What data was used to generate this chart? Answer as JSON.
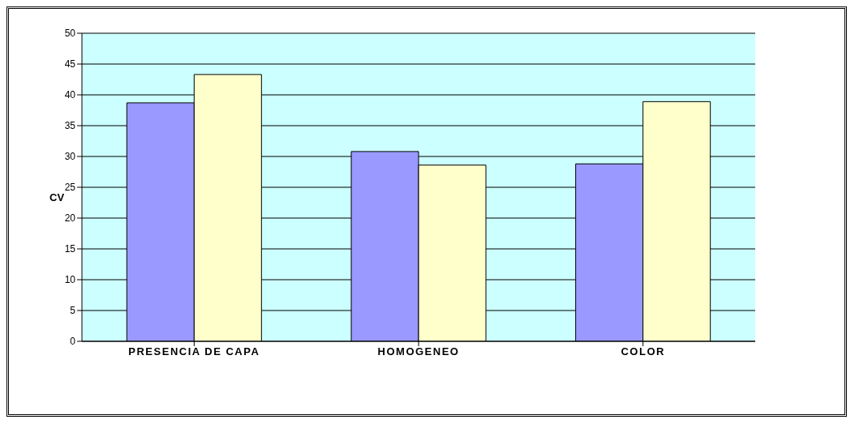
{
  "chart_data": {
    "type": "bar",
    "ylabel": "CV",
    "categories": [
      "PRESENCIA DE CAPA",
      "HOMOGENEO",
      "COLOR"
    ],
    "series": [
      {
        "color": "#9999ff",
        "values": [
          38.7,
          30.8,
          28.8
        ]
      },
      {
        "color": "#ffffcc",
        "values": [
          43.3,
          28.6,
          38.9
        ]
      }
    ],
    "ylim": [
      0,
      50
    ],
    "yticks": [
      0,
      5,
      10,
      15,
      20,
      25,
      30,
      35,
      40,
      45,
      50
    ],
    "grid": "y"
  }
}
